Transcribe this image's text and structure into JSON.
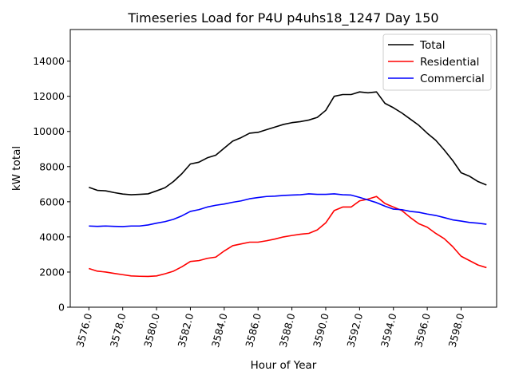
{
  "chart_data": {
    "type": "line",
    "title": "Timeseries Load for P4U p4uhs18_1247  Day 150",
    "xlabel": "Hour of Year",
    "ylabel": "kW total",
    "xlim": [
      3574.9,
      3600.1
    ],
    "ylim": [
      0,
      15800
    ],
    "xticks": [
      3576,
      3578,
      3580,
      3582,
      3584,
      3586,
      3588,
      3590,
      3592,
      3594,
      3596,
      3598
    ],
    "xtick_labels": [
      "3576.0",
      "3578.0",
      "3580.0",
      "3582.0",
      "3584.0",
      "3586.0",
      "3588.0",
      "3590.0",
      "3592.0",
      "3594.0",
      "3596.0",
      "3598.0"
    ],
    "yticks": [
      0,
      2000,
      4000,
      6000,
      8000,
      10000,
      12000,
      14000
    ],
    "ytick_labels": [
      "0",
      "2000",
      "4000",
      "6000",
      "8000",
      "10000",
      "12000",
      "14000"
    ],
    "legend_position": "top-right",
    "x": [
      3576.0,
      3576.5,
      3577.0,
      3577.5,
      3578.0,
      3578.5,
      3579.0,
      3579.5,
      3580.0,
      3580.5,
      3581.0,
      3581.5,
      3582.0,
      3582.5,
      3583.0,
      3583.5,
      3584.0,
      3584.5,
      3585.0,
      3585.5,
      3586.0,
      3586.5,
      3587.0,
      3587.5,
      3588.0,
      3588.5,
      3589.0,
      3589.5,
      3590.0,
      3590.5,
      3591.0,
      3591.5,
      3592.0,
      3592.5,
      3593.0,
      3593.5,
      3594.0,
      3594.5,
      3595.0,
      3595.5,
      3596.0,
      3596.5,
      3597.0,
      3597.5,
      3598.0,
      3598.5,
      3599.0,
      3599.5
    ],
    "series": [
      {
        "name": "Total",
        "color": "#000000",
        "values": [
          6820,
          6650,
          6620,
          6520,
          6440,
          6400,
          6420,
          6450,
          6620,
          6800,
          7150,
          7600,
          8150,
          8250,
          8500,
          8650,
          9050,
          9450,
          9650,
          9900,
          9950,
          10100,
          10250,
          10400,
          10500,
          10560,
          10650,
          10800,
          11200,
          12000,
          12100,
          12100,
          12250,
          12200,
          12250,
          11600,
          11350,
          11050,
          10700,
          10350,
          9900,
          9500,
          8950,
          8350,
          7650,
          7450,
          7150,
          6950
        ]
      },
      {
        "name": "Residential",
        "color": "#ff0000",
        "values": [
          2200,
          2050,
          2000,
          1920,
          1850,
          1780,
          1760,
          1750,
          1780,
          1900,
          2050,
          2300,
          2600,
          2650,
          2780,
          2850,
          3200,
          3500,
          3600,
          3700,
          3700,
          3780,
          3880,
          4000,
          4080,
          4150,
          4200,
          4400,
          4800,
          5500,
          5700,
          5700,
          6050,
          6150,
          6300,
          5900,
          5700,
          5500,
          5100,
          4750,
          4550,
          4200,
          3900,
          3450,
          2900,
          2650,
          2400,
          2250
        ]
      },
      {
        "name": "Commercial",
        "color": "#0000ff",
        "values": [
          4620,
          4600,
          4620,
          4600,
          4590,
          4620,
          4620,
          4680,
          4780,
          4870,
          5000,
          5200,
          5450,
          5550,
          5700,
          5800,
          5870,
          5970,
          6050,
          6170,
          6240,
          6300,
          6320,
          6360,
          6380,
          6400,
          6450,
          6420,
          6420,
          6450,
          6400,
          6380,
          6250,
          6100,
          5950,
          5750,
          5580,
          5550,
          5450,
          5400,
          5300,
          5220,
          5100,
          4970,
          4900,
          4820,
          4780,
          4720
        ]
      }
    ]
  }
}
